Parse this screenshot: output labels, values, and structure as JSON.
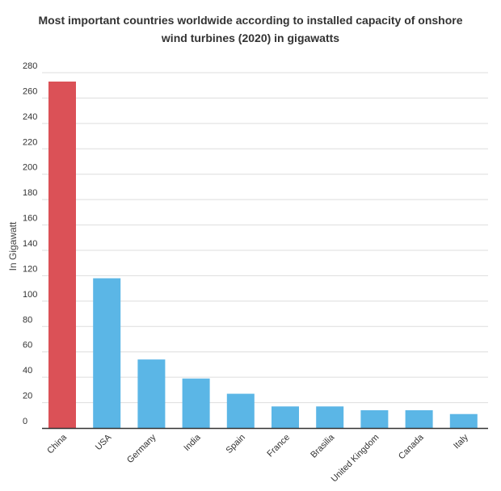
{
  "chart_data": {
    "type": "bar",
    "title": "Most important countries worldwide according to installed capacity of onshore wind turbines (2020) in gigawatts",
    "xlabel": "",
    "ylabel": "In Gigawatt",
    "ylim": [
      0,
      280
    ],
    "yticks": [
      0,
      20,
      40,
      60,
      80,
      100,
      120,
      140,
      160,
      180,
      200,
      220,
      240,
      260,
      280
    ],
    "grid": true,
    "categories": [
      "China",
      "USA",
      "Germany",
      "India",
      "Spain",
      "France",
      "Brasilia",
      "United Kingdom",
      "Canada",
      "Italy"
    ],
    "values": [
      273,
      118,
      54,
      39,
      27,
      17,
      17,
      14,
      14,
      11
    ],
    "colors": {
      "highlight": "#db5157",
      "default": "#5bb6e6",
      "grid": "#dddddd",
      "axis": "#333333"
    },
    "highlight_index": 0
  }
}
